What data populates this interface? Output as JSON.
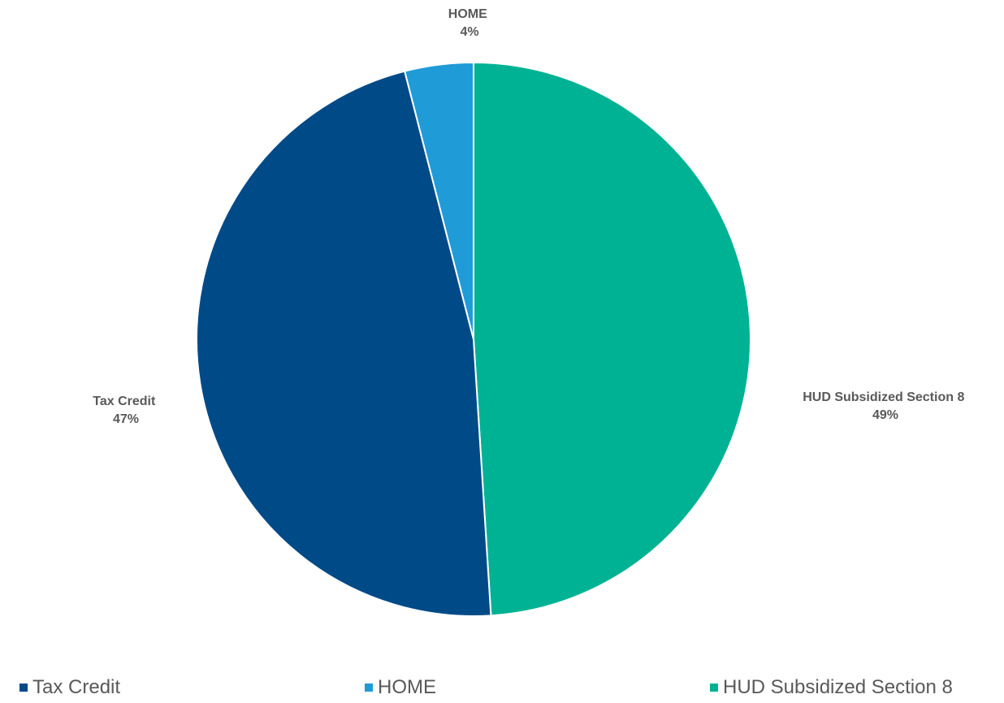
{
  "chart_data": {
    "type": "pie",
    "title": "",
    "slices": [
      {
        "label": "Tax Credit",
        "value": 47,
        "display": "47%",
        "color": "#004a87"
      },
      {
        "label": "HOME",
        "value": 4,
        "display": "4%",
        "color": "#1f9bd7"
      },
      {
        "label": "HUD Subsidized Section 8",
        "value": 49,
        "display": "49%",
        "color": "#00b294"
      }
    ],
    "start_angle_deg": 0,
    "direction": "clockwise-from-top, last slice first",
    "legend_placement": "bottom"
  },
  "legend": {
    "items": [
      {
        "label": "Tax Credit",
        "color": "#004a87"
      },
      {
        "label": "HOME",
        "color": "#1f9bd7"
      },
      {
        "label": "HUD Subsidized Section 8",
        "color": "#00b294"
      }
    ]
  }
}
